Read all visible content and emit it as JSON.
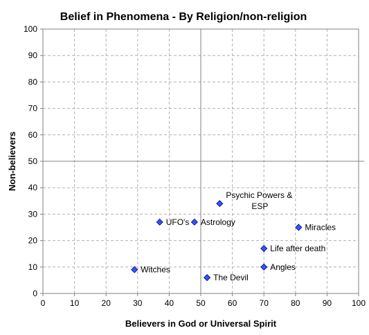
{
  "chart_data": {
    "type": "scatter",
    "title": "Belief in Phenomena - By Religion/non-religion",
    "xlabel": "Believers in God or Universal Spirit",
    "ylabel": "Non-believers",
    "xlim": [
      0,
      100
    ],
    "ylim": [
      0,
      100
    ],
    "xticks": [
      0,
      10,
      20,
      30,
      40,
      50,
      60,
      70,
      80,
      90,
      100
    ],
    "yticks": [
      0,
      10,
      20,
      30,
      40,
      50,
      60,
      70,
      80,
      90,
      100
    ],
    "grid": true,
    "reference_lines": {
      "x": 50,
      "y": 50
    },
    "marker_color": "#3355ff",
    "marker_edge_color": "#000080",
    "points": [
      {
        "label": "Psychic Powers & ESP",
        "label_lines": [
          "Psychic Powers &",
          "ESP"
        ],
        "x": 56,
        "y": 34
      },
      {
        "label": "UFO's",
        "label_lines": [
          "UFO's"
        ],
        "x": 37,
        "y": 27
      },
      {
        "label": "Astrology",
        "label_lines": [
          "Astrology"
        ],
        "x": 48,
        "y": 27
      },
      {
        "label": "Miracles",
        "label_lines": [
          "Miracles"
        ],
        "x": 81,
        "y": 25
      },
      {
        "label": "Life after death",
        "label_lines": [
          "Life after death"
        ],
        "x": 70,
        "y": 17
      },
      {
        "label": "Angles",
        "label_lines": [
          "Angles"
        ],
        "x": 70,
        "y": 10
      },
      {
        "label": "Witches",
        "label_lines": [
          "Witches"
        ],
        "x": 29,
        "y": 9
      },
      {
        "label": "The Devil",
        "label_lines": [
          "The Devil"
        ],
        "x": 52,
        "y": 6
      }
    ]
  }
}
